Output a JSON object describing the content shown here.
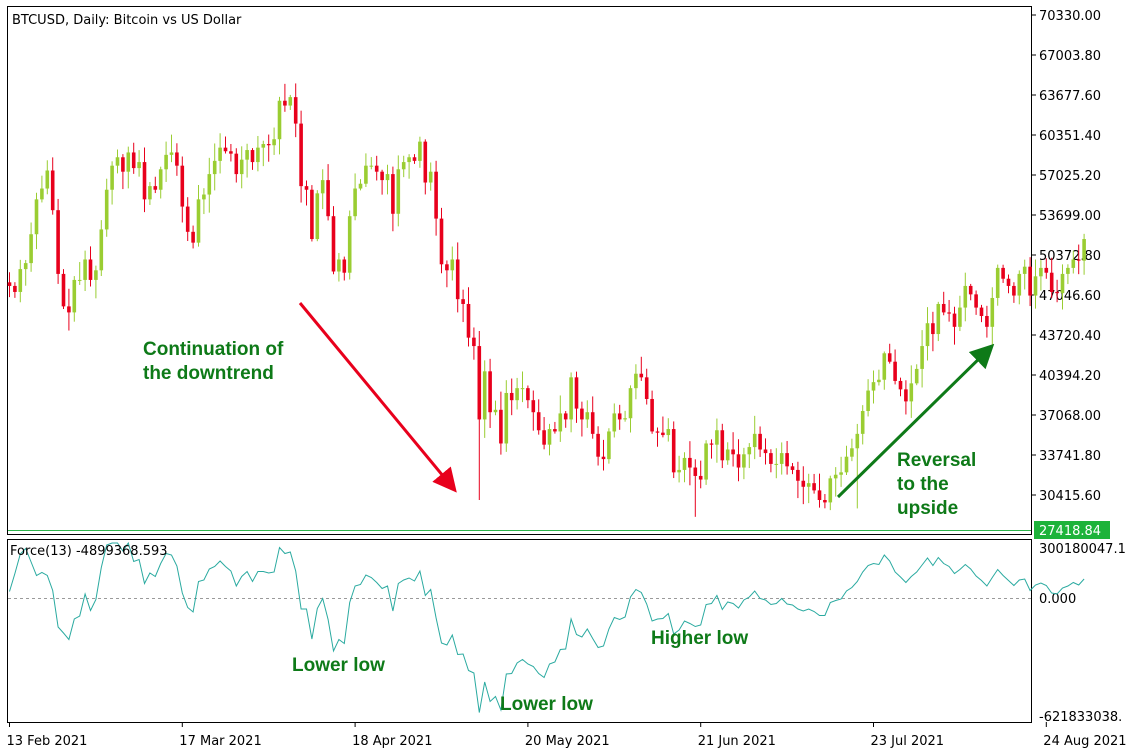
{
  "chart_data": [
    {
      "type": "candlestick",
      "title": "BTCUSD, Daily:  Bitcoin vs US Dollar",
      "price_ticks": [
        "70330.00",
        "67003.80",
        "63677.60",
        "60351.40",
        "57025.20",
        "53699.00",
        "50372.80",
        "47046.60",
        "43720.40",
        "40394.20",
        "37068.00",
        "33741.80",
        "30415.60"
      ],
      "ylim": [
        27418.84,
        70330.0
      ],
      "current_price": "27418.84",
      "x_dates": [
        "13 Feb 2021",
        "17 Mar 2021",
        "18 Apr 2021",
        "20 May 2021",
        "21 Jun 2021",
        "23 Jul 2021",
        "24 Aug 2021"
      ],
      "x_date_bar_index": [
        0,
        32,
        64,
        96,
        128,
        160,
        192
      ],
      "grid": false,
      "colors": {
        "up": "#9ACD32",
        "down": "#E8001C"
      },
      "closes": [
        47800,
        47300,
        49200,
        49700,
        52100,
        55000,
        55900,
        57400,
        54100,
        48800,
        46100,
        45600,
        48300,
        48300,
        50000,
        48300,
        49100,
        52500,
        55800,
        57800,
        58500,
        57300,
        58900,
        57600,
        58100,
        55000,
        56100,
        55800,
        57500,
        58700,
        58900,
        57800,
        54400,
        52300,
        51400,
        55000,
        55400,
        57100,
        58200,
        59300,
        59000,
        58800,
        57100,
        58300,
        59100,
        58100,
        59300,
        59600,
        59500,
        60000,
        63200,
        62800,
        63500,
        61300,
        56100,
        55800,
        51700,
        55500,
        56600,
        53600,
        49000,
        50000,
        48900,
        53600,
        55900,
        56300,
        57800,
        57800,
        57300,
        56600,
        57100,
        53800,
        57500,
        58100,
        58500,
        58200,
        59800,
        56400,
        57300,
        53400,
        49600,
        49100,
        50000,
        46700,
        46300,
        43500,
        42800,
        36700,
        40700,
        37300,
        37500,
        34700,
        38900,
        38300,
        39300,
        39300,
        38300,
        37300,
        35800,
        34600,
        35900,
        35700,
        37200,
        36700,
        40200,
        37600,
        36700,
        37300,
        35500,
        33600,
        33400,
        35700,
        37200,
        36700,
        36800,
        39300,
        40500,
        40200,
        38400,
        35700,
        35600,
        35400,
        35900,
        32300,
        32500,
        33500,
        32700,
        32000,
        31700,
        34700,
        34600,
        35800,
        33300,
        34200,
        33800,
        32700,
        33800,
        34400,
        35500,
        34200,
        33900,
        33000,
        33000,
        33900,
        32800,
        32500,
        31600,
        31100,
        31400,
        30800,
        30000,
        29800,
        31800,
        32100,
        32300,
        33600,
        34300,
        35500,
        37400,
        39100,
        39800,
        40000,
        42200,
        41500,
        39900,
        39200,
        38200,
        39700,
        40900,
        42800,
        44700,
        43800,
        46300,
        45600,
        45500,
        44400,
        46000,
        47800,
        47100,
        46000,
        45300,
        44400,
        46800,
        49300,
        48400,
        47800,
        47000,
        48800,
        49400,
        47000,
        48600,
        49300,
        48900,
        47300,
        47200,
        48800,
        49300,
        50000,
        49900,
        51700
      ]
    },
    {
      "type": "line",
      "title": "Force(13) -4899368.593",
      "ticks": [
        "300180047.1",
        "0.000",
        "-621833038."
      ],
      "ylim": [
        -621833038,
        300180047
      ],
      "values": [
        1.3,
        4.9,
        8.8,
        9.9,
        7.2,
        4.5,
        5.1,
        4.5,
        1.5,
        -5.8,
        -7,
        -8.3,
        -4.2,
        -3.6,
        0.8,
        -2.5,
        -0.3,
        6.1,
        10.6,
        12.2,
        12.1,
        9.4,
        11.7,
        7.3,
        7.7,
        2.9,
        5,
        4.3,
        6.9,
        8.9,
        8.6,
        6.4,
        1,
        -1.9,
        -2.8,
        3.3,
        3.6,
        5.8,
        6.3,
        7.4,
        6.3,
        5.4,
        2.4,
        4.3,
        5.3,
        3.3,
        5.3,
        5.3,
        5,
        5.2,
        10.1,
        8.9,
        9.2,
        5.4,
        -2.2,
        -2.2,
        -8.2,
        -2.1,
        -0.1,
        -4.3,
        -10.6,
        -8.3,
        -9.1,
        -0.9,
        2.4,
        2.7,
        4.6,
        4.1,
        3.1,
        1.9,
        2.4,
        -2.6,
        2.9,
        3.6,
        4,
        3.4,
        5.4,
        0.5,
        1.7,
        -4,
        -9,
        -9.4,
        -7.4,
        -11.3,
        -11.2,
        -14.5,
        -15,
        -22.9,
        -16.8,
        -20.7,
        -19.7,
        -22.4,
        -15.2,
        -15.1,
        -13,
        -12.3,
        -13.2,
        -13.7,
        -15.1,
        -15.9,
        -13.2,
        -12.8,
        -10.3,
        -10.2,
        -4.2,
        -7.3,
        -7.8,
        -6.2,
        -8.1,
        -9.9,
        -9.6,
        -6.2,
        -3.9,
        -4.3,
        -3.8,
        0.2,
        1.7,
        1.1,
        -1.2,
        -4.6,
        -4.2,
        -4.1,
        -3.1,
        -7.2,
        -6.4,
        -4.6,
        -5.1,
        -5.7,
        -5.4,
        -1.3,
        -1.1,
        0.5,
        -2.3,
        -0.8,
        -1.1,
        -2,
        -0.4,
        0.2,
        1.4,
        -0.1,
        -0.4,
        -1.3,
        -1.1,
        -0.1,
        -1.2,
        -1.4,
        -2.2,
        -2.6,
        -2.2,
        -2.7,
        -3.5,
        -3.5,
        -0.9,
        -0.5,
        -0.2,
        1.4,
        2.1,
        3.3,
        5.2,
        6.5,
        6.9,
        6.7,
        8.6,
        7.4,
        5.2,
        4.2,
        3.1,
        4.3,
        5.2,
        6.6,
        8,
        6.5,
        8.1,
        6.9,
        6.3,
        4.9,
        5.7,
        6.7,
        5.8,
        4.4,
        3.5,
        2.4,
        4.1,
        5.7,
        4.5,
        3.5,
        2.5,
        3.6,
        3.8,
        1.5,
        2.6,
        3,
        2.5,
        1,
        0.8,
        2,
        2.4,
        3.1,
        2.6,
        3.8
      ]
    }
  ],
  "annotations": {
    "downtrend": [
      "Continuation of",
      "the downtrend"
    ],
    "reversal": [
      "Reversal",
      "to the",
      "upside"
    ],
    "lower_low_1": "Lower low",
    "lower_low_2": "Lower low",
    "higher_low": "Higher low"
  }
}
